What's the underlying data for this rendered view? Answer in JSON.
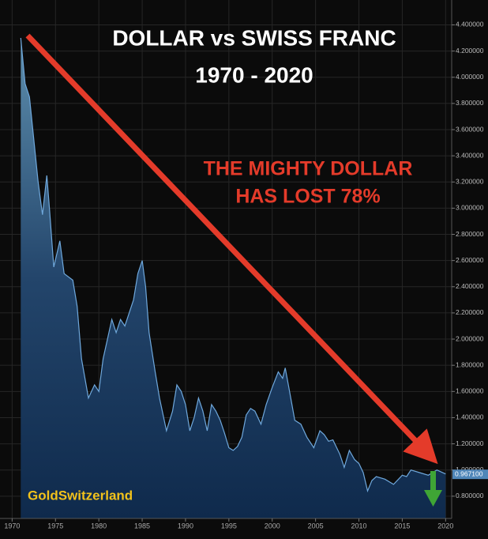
{
  "chart_data": {
    "type": "area",
    "title": "DOLLAR vs SWISS FRANC",
    "subtitle": "1970 - 2020",
    "annotation": [
      "THE MIGHTY DOLLAR",
      "HAS LOST 78%"
    ],
    "watermark": "GoldSwitzerland",
    "color": "#6fa8dc",
    "x": [
      1971.0,
      1971.5,
      1972.0,
      1973.0,
      1973.5,
      1974.0,
      1974.3,
      1974.8,
      1975.5,
      1976.0,
      1977.0,
      1977.5,
      1978.0,
      1978.8,
      1979.5,
      1980.0,
      1980.5,
      1981.5,
      1982.0,
      1982.5,
      1983.0,
      1983.5,
      1984.0,
      1984.5,
      1985.0,
      1985.4,
      1985.8,
      1986.5,
      1987.0,
      1987.8,
      1988.5,
      1989.0,
      1989.5,
      1990.0,
      1990.5,
      1991.0,
      1991.5,
      1992.0,
      1992.5,
      1993.0,
      1993.5,
      1994.0,
      1994.5,
      1995.0,
      1995.5,
      1996.0,
      1996.5,
      1997.0,
      1997.5,
      1998.0,
      1998.7,
      1999.3,
      2000.0,
      2000.7,
      2001.2,
      2001.5,
      2002.0,
      2002.6,
      2003.3,
      2004.0,
      2004.8,
      2005.5,
      2006.0,
      2006.5,
      2007.0,
      2007.8,
      2008.3,
      2008.9,
      2009.5,
      2010.0,
      2010.5,
      2011.0,
      2011.5,
      2012.0,
      2013.0,
      2014.0,
      2015.0,
      2015.5,
      2016.0,
      2017.0,
      2018.0,
      2019.0,
      2020.0
    ],
    "values": [
      4.3,
      3.95,
      3.85,
      3.2,
      2.95,
      3.25,
      3.0,
      2.55,
      2.75,
      2.5,
      2.45,
      2.25,
      1.85,
      1.55,
      1.65,
      1.6,
      1.85,
      2.15,
      2.05,
      2.15,
      2.1,
      2.2,
      2.3,
      2.5,
      2.6,
      2.4,
      2.05,
      1.75,
      1.55,
      1.3,
      1.45,
      1.65,
      1.6,
      1.5,
      1.3,
      1.4,
      1.55,
      1.45,
      1.3,
      1.5,
      1.45,
      1.38,
      1.28,
      1.17,
      1.15,
      1.18,
      1.25,
      1.42,
      1.47,
      1.45,
      1.35,
      1.5,
      1.63,
      1.75,
      1.7,
      1.78,
      1.6,
      1.38,
      1.35,
      1.25,
      1.17,
      1.3,
      1.27,
      1.22,
      1.23,
      1.12,
      1.02,
      1.15,
      1.08,
      1.05,
      0.98,
      0.84,
      0.92,
      0.95,
      0.93,
      0.89,
      0.96,
      0.95,
      1.0,
      0.98,
      0.96,
      1.0,
      0.97
    ],
    "current": {
      "value": 0.9671,
      "label": "0.967100"
    },
    "xlim": [
      1968.6,
      2020.7
    ],
    "xticks": [
      1970,
      1975,
      1980,
      1985,
      1990,
      1995,
      2000,
      2005,
      2010,
      2015,
      2020
    ],
    "ylim": [
      0.63,
      4.59
    ],
    "yticks": [
      {
        "value": 0.8,
        "label": "0.800000"
      },
      {
        "value": 1.0,
        "label": "1.000000"
      },
      {
        "value": 1.2,
        "label": "1.200000"
      },
      {
        "value": 1.4,
        "label": "1.400000"
      },
      {
        "value": 1.6,
        "label": "1.600000"
      },
      {
        "value": 1.8,
        "label": "1.800000"
      },
      {
        "value": 2.0,
        "label": "2.000000"
      },
      {
        "value": 2.2,
        "label": "2.200000"
      },
      {
        "value": 2.4,
        "label": "2.400000"
      },
      {
        "value": 2.6,
        "label": "2.600000"
      },
      {
        "value": 2.8,
        "label": "2.800000"
      },
      {
        "value": 3.0,
        "label": "3.000000"
      },
      {
        "value": 3.2,
        "label": "3.200000"
      },
      {
        "value": 3.4,
        "label": "3.400000"
      },
      {
        "value": 3.6,
        "label": "3.600000"
      },
      {
        "value": 3.8,
        "label": "3.800000"
      },
      {
        "value": 4.0,
        "label": "4.000000"
      },
      {
        "value": 4.2,
        "label": "4.200000"
      },
      {
        "value": 4.4,
        "label": "4.400000"
      }
    ],
    "grid": true
  }
}
